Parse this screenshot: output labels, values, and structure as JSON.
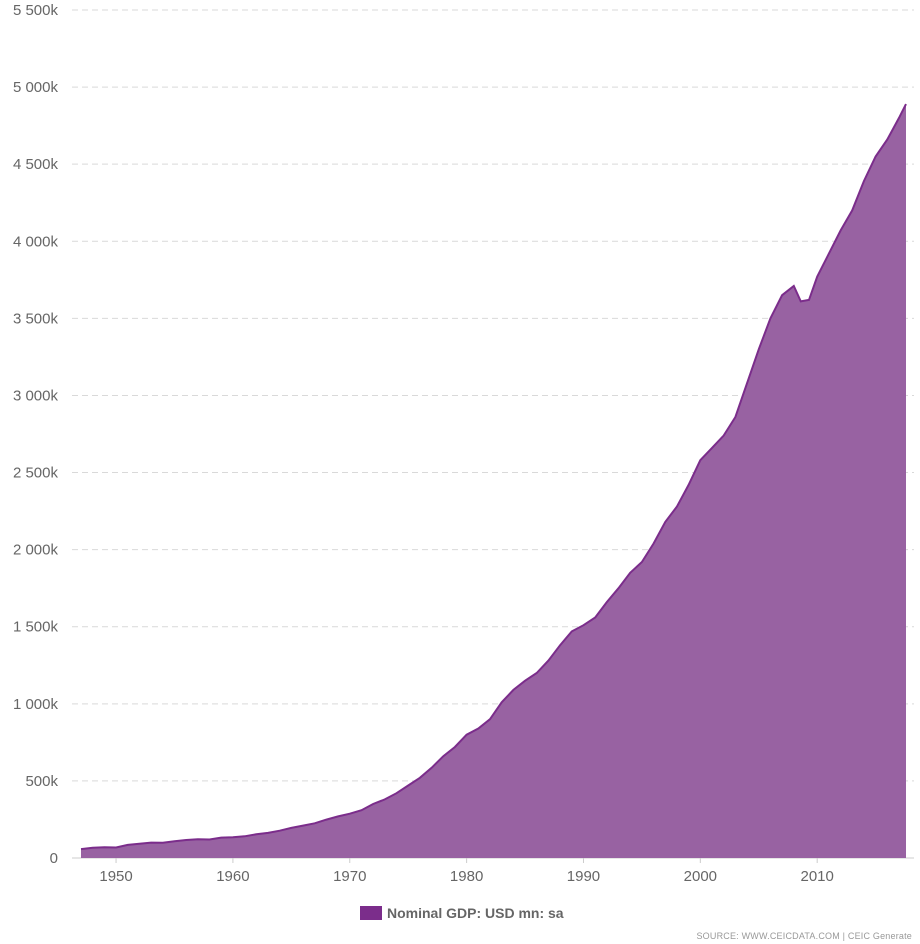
{
  "chart_data": {
    "type": "area",
    "title": "",
    "xlabel": "",
    "ylabel": "",
    "x_ticks": [
      "1950",
      "1960",
      "1970",
      "1980",
      "1990",
      "2000",
      "2010"
    ],
    "x_tick_values": [
      1950,
      1960,
      1970,
      1980,
      1990,
      2000,
      2010
    ],
    "y_ticks": [
      "0",
      "500k",
      "1 000k",
      "1 500k",
      "2 000k",
      "2 500k",
      "3 000k",
      "3 500k",
      "4 000k",
      "4 500k",
      "5 000k",
      "5 500k"
    ],
    "y_tick_values": [
      0,
      500000,
      1000000,
      1500000,
      2000000,
      2500000,
      3000000,
      3500000,
      4000000,
      4500000,
      5000000,
      5500000
    ],
    "xlim": [
      1947,
      2017.6
    ],
    "ylim": [
      0,
      5500000
    ],
    "grid": "horizontal-dashed",
    "legend_position": "bottom-center",
    "color": "#7b2d8b",
    "fill_color": "#9862a2",
    "series": [
      {
        "name": "Nominal GDP: USD mn: sa",
        "x": [
          1947,
          1948,
          1949,
          1950,
          1951,
          1952,
          1953,
          1954,
          1955,
          1956,
          1957,
          1958,
          1959,
          1960,
          1961,
          1962,
          1963,
          1964,
          1965,
          1966,
          1967,
          1968,
          1969,
          1970,
          1971,
          1972,
          1973,
          1974,
          1975,
          1976,
          1977,
          1978,
          1979,
          1980,
          1981,
          1982,
          1983,
          1984,
          1985,
          1986,
          1987,
          1988,
          1989,
          1990,
          1991,
          1992,
          1993,
          1994,
          1995,
          1996,
          1997,
          1998,
          1999,
          2000,
          2001,
          2002,
          2003,
          2004,
          2005,
          2006,
          2007,
          2008,
          2008.6,
          2009.3,
          2010,
          2011,
          2012,
          2013,
          2014,
          2015,
          2016,
          2017,
          2017.6
        ],
        "y": [
          58000,
          66000,
          70000,
          68000,
          85000,
          93000,
          100000,
          99000,
          109000,
          117000,
          122000,
          120000,
          132000,
          135000,
          141000,
          154000,
          163000,
          177000,
          195000,
          210000,
          225000,
          249000,
          270000,
          287000,
          310000,
          350000,
          380000,
          420000,
          470000,
          520000,
          585000,
          660000,
          720000,
          800000,
          840000,
          900000,
          1010000,
          1090000,
          1150000,
          1200000,
          1280000,
          1380000,
          1470000,
          1510000,
          1560000,
          1660000,
          1750000,
          1850000,
          1920000,
          2040000,
          2180000,
          2280000,
          2420000,
          2580000,
          2660000,
          2740000,
          2860000,
          3080000,
          3300000,
          3500000,
          3650000,
          3710000,
          3610000,
          3620000,
          3770000,
          3920000,
          4070000,
          4200000,
          4390000,
          4550000,
          4660000,
          4800000,
          4890000
        ]
      }
    ],
    "source": "SOURCE: WWW.CEICDATA.COM | CEIC Generate"
  }
}
